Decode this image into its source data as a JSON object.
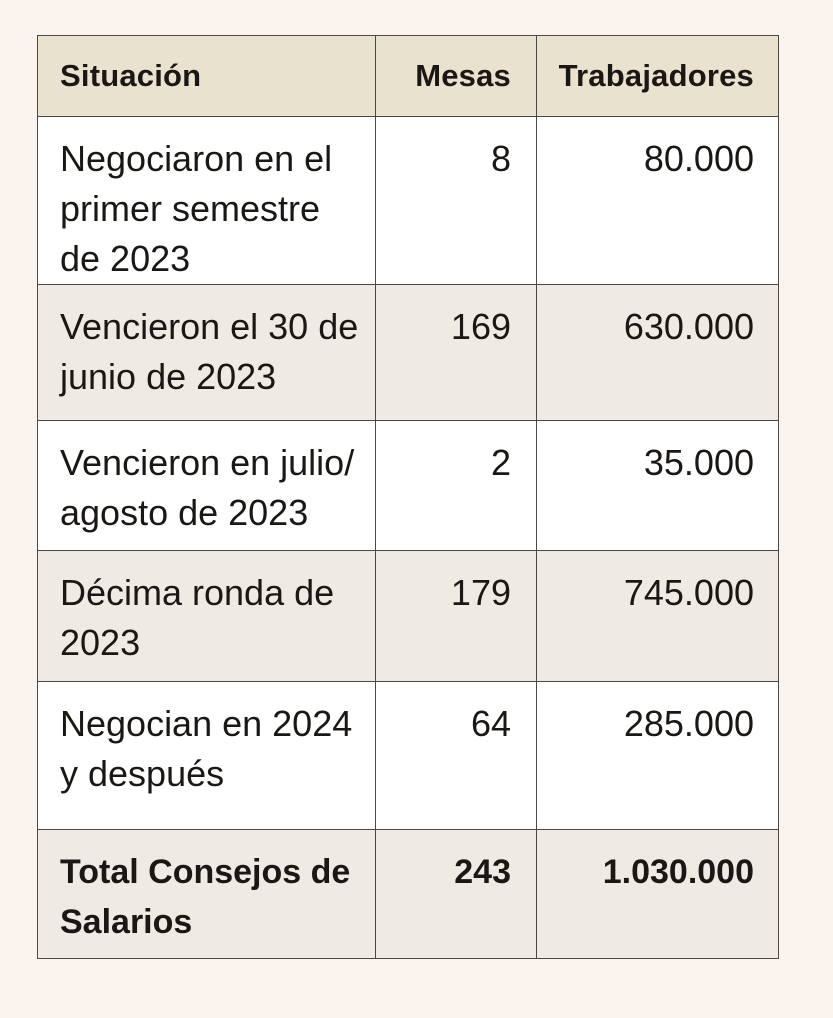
{
  "table": {
    "headers": {
      "situacion": "Situación",
      "mesas": "Mesas",
      "trabajadores": "Trabajadores"
    },
    "rows": [
      {
        "situacion": "Negociaron en el primer semestre de 2023",
        "mesas": "8",
        "trabajadores": "80.000"
      },
      {
        "situacion": "Vencieron el 30 de junio de 2023",
        "mesas": "169",
        "trabajadores": "630.000"
      },
      {
        "situacion": "Vencieron en julio/ agosto de 2023",
        "mesas": "2",
        "trabajadores": "35.000"
      },
      {
        "situacion": "Décima ronda de 2023",
        "mesas": "179",
        "trabajadores": "745.000"
      },
      {
        "situacion": "Negocian en 2024 y después",
        "mesas": "64",
        "trabajadores": "285.000"
      }
    ],
    "total": {
      "situacion": "Total Consejos de Salarios",
      "mesas": "243",
      "trabajadores": "1.030.000"
    }
  },
  "colors": {
    "page_background": "#fbf3ee",
    "header_background": "#e8e2cf",
    "row_white": "#ffffff",
    "row_shaded": "#efebe4",
    "border": "#4a4744"
  }
}
